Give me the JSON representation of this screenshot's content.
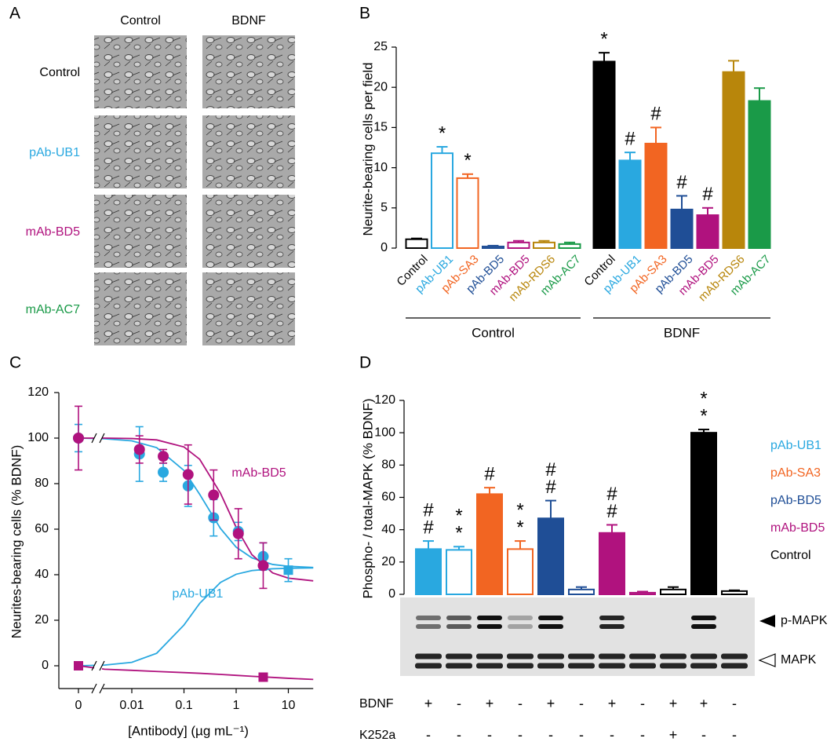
{
  "panel_a": {
    "label": "A",
    "columns": [
      "Control",
      "BDNF"
    ],
    "rows": [
      {
        "label": "Control",
        "color": "#000000"
      },
      {
        "label": "pAb-UB1",
        "color": "#29a8e0"
      },
      {
        "label": "mAb-BD5",
        "color": "#b0127e"
      },
      {
        "label": "mAb-AC7",
        "color": "#1a9a48"
      }
    ]
  },
  "chart_data": [
    {
      "panel": "B",
      "type": "bar",
      "ylabel": "Neurite-bearing cells per field",
      "categories": [
        "Control",
        "pAb-UB1",
        "pAb-SA3",
        "pAb-BD5",
        "mAb-BD5",
        "mAb-RDS6",
        "mAb-AC7"
      ],
      "colors": [
        "#000000",
        "#29a8e0",
        "#f26522",
        "#1f4e96",
        "#b0127e",
        "#b8860b",
        "#1a9a48"
      ],
      "ylim": [
        0,
        25
      ],
      "yticks": [
        0,
        5,
        10,
        15,
        20,
        25
      ],
      "series": [
        {
          "name": "Control",
          "fill": "hollow",
          "values": [
            1.1,
            11.8,
            8.7,
            0.2,
            0.7,
            0.7,
            0.5
          ],
          "errors": [
            0.1,
            0.8,
            0.5,
            0.1,
            0.2,
            0.2,
            0.2
          ],
          "markers": [
            null,
            "*",
            "*",
            null,
            null,
            null,
            null
          ]
        },
        {
          "name": "BDNF",
          "fill": "solid",
          "values": [
            23.2,
            10.9,
            13.0,
            4.8,
            4.1,
            21.9,
            18.3
          ],
          "errors": [
            1.1,
            1.0,
            2.0,
            1.7,
            0.9,
            1.4,
            1.6
          ],
          "markers": [
            "*",
            "#",
            "#",
            "#",
            "#",
            null,
            null
          ]
        }
      ]
    },
    {
      "panel": "C",
      "type": "scatter",
      "xlabel": "[Antibody] (µg mL⁻¹)",
      "ylabel": "Neurites-bearing cells (% BDNF)",
      "xscale": "log",
      "x_break": true,
      "xlim": [
        0.003,
        30
      ],
      "xticks": [
        0,
        0.01,
        0.1,
        1,
        10
      ],
      "ylim": [
        -10,
        120
      ],
      "yticks": [
        0,
        20,
        40,
        60,
        80,
        100,
        120
      ],
      "series": [
        {
          "name": "pAb-UB1",
          "color": "#29a8e0",
          "marker": "circle",
          "x": [
            0,
            0.014,
            0.04,
            0.12,
            0.37,
            1.1,
            3.3
          ],
          "values": [
            100,
            93,
            85,
            79,
            65,
            59,
            48
          ],
          "errors": [
            6,
            12,
            4,
            9,
            8,
            4,
            6
          ]
        },
        {
          "name": "mAb-BD5",
          "color": "#b0127e",
          "marker": "circle",
          "x": [
            0,
            0.014,
            0.04,
            0.12,
            0.37,
            1.1,
            3.3
          ],
          "values": [
            100,
            95,
            92,
            84,
            75,
            58,
            44
          ],
          "errors": [
            14,
            6,
            3,
            13,
            11,
            11,
            10
          ]
        },
        {
          "color": "#29a8e0",
          "marker": "square",
          "x": [
            10
          ],
          "values": [
            42
          ],
          "errors": [
            5
          ]
        },
        {
          "color": "#b0127e",
          "marker": "square",
          "x": [
            0,
            3.3
          ],
          "values": [
            0,
            -5
          ]
        },
        {
          "color": "#29a8e0",
          "marker": "line",
          "x": [
            0,
            0.003,
            0.01,
            0.03,
            0.1,
            0.2,
            0.5,
            1,
            2,
            5,
            10,
            30
          ],
          "values": [
            100,
            99.7,
            98.8,
            95.8,
            85.8,
            75.3,
            60.3,
            52.1,
            47.4,
            44.5,
            43.7,
            43.2
          ]
        },
        {
          "color": "#b0127e",
          "marker": "line",
          "x": [
            0,
            0.003,
            0.01,
            0.03,
            0.1,
            0.2,
            0.5,
            1,
            2,
            5,
            10,
            30
          ],
          "values": [
            100,
            100,
            99.8,
            99.2,
            96.1,
            90.7,
            75.8,
            60.8,
            48.8,
            40.8,
            38.5,
            37.3
          ]
        },
        {
          "color": "#29a8e0",
          "marker": "line",
          "x": [
            0,
            0.003,
            0.01,
            0.03,
            0.1,
            0.2,
            0.5,
            1,
            2,
            5,
            10,
            30
          ],
          "values": [
            0,
            0.3,
            1.5,
            5.5,
            17.9,
            27.4,
            36.6,
            40.2,
            41.8,
            42.6,
            42.8,
            43
          ]
        },
        {
          "color": "#b0127e",
          "marker": "line",
          "x": [
            0,
            0.003,
            0.01,
            0.03,
            0.1,
            0.2,
            0.5,
            1,
            2,
            5,
            10,
            30
          ],
          "values": [
            0,
            -1.5,
            -2,
            -2.5,
            -3,
            -3.3,
            -3.8,
            -4.2,
            -4.6,
            -5.1,
            -5.5,
            -6
          ]
        }
      ]
    },
    {
      "panel": "D",
      "type": "bar",
      "ylabel": "Phospho- / total-MAPK (% BDNF)",
      "ylim": [
        0,
        120
      ],
      "yticks": [
        0,
        20,
        40,
        60,
        80,
        100,
        120
      ],
      "values": [
        28,
        27.5,
        62,
        28,
        47,
        3,
        38,
        1,
        3,
        100,
        2
      ],
      "errors": [
        5,
        2,
        4,
        5,
        11,
        1.5,
        5,
        0.7,
        1.5,
        2,
        0.5
      ],
      "colors": [
        "#29a8e0",
        "#29a8e0",
        "#f26522",
        "#f26522",
        "#1f4e96",
        "#1f4e96",
        "#b0127e",
        "#b0127e",
        "#000000",
        "#000000",
        "#000000"
      ],
      "filled": [
        true,
        false,
        true,
        false,
        true,
        false,
        true,
        false,
        false,
        true,
        false
      ],
      "markers": [
        [
          "#",
          "#"
        ],
        [
          "*",
          "*"
        ],
        [
          "#"
        ],
        [
          "*",
          "*"
        ],
        [
          "#",
          "#"
        ],
        null,
        [
          "#",
          "#"
        ],
        null,
        null,
        [
          "*",
          "*"
        ],
        null
      ],
      "legend": [
        {
          "name": "pAb-UB1",
          "color": "#29a8e0"
        },
        {
          "name": "pAb-SA3",
          "color": "#f26522"
        },
        {
          "name": "pAb-BD5",
          "color": "#1f4e96"
        },
        {
          "name": "mAb-BD5",
          "color": "#b0127e"
        },
        {
          "name": "Control",
          "color": "#000000"
        }
      ],
      "blot_labels": [
        "p-MAPK",
        "MAPK"
      ],
      "treatments": [
        {
          "name": "BDNF",
          "signs": [
            "+",
            "-",
            "+",
            "-",
            "+",
            "-",
            "+",
            "-",
            "+",
            "+",
            "-"
          ]
        },
        {
          "name": "K252a",
          "signs": [
            "-",
            "-",
            "-",
            "-",
            "-",
            "-",
            "-",
            "-",
            "+",
            "-",
            "-"
          ]
        }
      ]
    }
  ]
}
